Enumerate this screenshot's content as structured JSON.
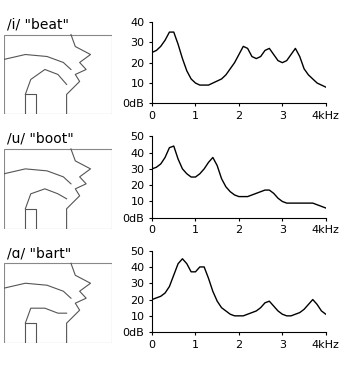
{
  "chart_data": [
    {
      "type": "line",
      "title": "/i/ \"beat\"",
      "color": "#000000",
      "x": [
        0.0,
        0.1,
        0.2,
        0.3,
        0.4,
        0.5,
        0.6,
        0.7,
        0.8,
        0.9,
        1.0,
        1.1,
        1.2,
        1.3,
        1.4,
        1.5,
        1.6,
        1.7,
        1.8,
        1.9,
        2.0,
        2.1,
        2.2,
        2.3,
        2.4,
        2.5,
        2.6,
        2.7,
        2.8,
        2.9,
        3.0,
        3.1,
        3.2,
        3.3,
        3.4,
        3.5,
        3.6,
        3.7,
        3.8,
        3.9,
        4.0
      ],
      "values": [
        25,
        26,
        28,
        31,
        35,
        35,
        29,
        22,
        16,
        12,
        10,
        9,
        9,
        9,
        10,
        11,
        12,
        14,
        17,
        20,
        24,
        28,
        27,
        23,
        22,
        23,
        26,
        27,
        24,
        21,
        20,
        21,
        24,
        27,
        23,
        17,
        14,
        12,
        10,
        9,
        8
      ],
      "xlim": [
        0,
        4
      ],
      "xticks": [
        0,
        1,
        2,
        3,
        {
          "value": 4,
          "label": "4kHz"
        }
      ],
      "ylim": [
        0,
        40
      ],
      "yticks": [
        {
          "value": 0,
          "label": "0dB"
        },
        10,
        20,
        30,
        40
      ]
    },
    {
      "type": "line",
      "title": "/u/ \"boot\"",
      "color": "#000000",
      "x": [
        0.0,
        0.1,
        0.2,
        0.3,
        0.4,
        0.5,
        0.6,
        0.7,
        0.8,
        0.9,
        1.0,
        1.1,
        1.2,
        1.3,
        1.4,
        1.5,
        1.6,
        1.7,
        1.8,
        1.9,
        2.0,
        2.1,
        2.2,
        2.3,
        2.4,
        2.5,
        2.6,
        2.7,
        2.8,
        2.9,
        3.0,
        3.1,
        3.2,
        3.3,
        3.4,
        3.5,
        3.6,
        3.7,
        3.8,
        3.9,
        4.0
      ],
      "values": [
        30,
        31,
        33,
        37,
        43,
        44,
        36,
        30,
        27,
        25,
        25,
        27,
        30,
        34,
        37,
        32,
        24,
        19,
        16,
        14,
        13,
        13,
        13,
        14,
        15,
        16,
        17,
        17,
        15,
        12,
        10,
        9,
        9,
        9,
        9,
        9,
        9,
        9,
        8,
        7,
        6
      ],
      "xlim": [
        0,
        4
      ],
      "xticks": [
        0,
        1,
        2,
        3,
        {
          "value": 4,
          "label": "4kHz"
        }
      ],
      "ylim": [
        0,
        50
      ],
      "yticks": [
        {
          "value": 0,
          "label": "0dB"
        },
        10,
        20,
        30,
        40,
        50
      ]
    },
    {
      "type": "line",
      "title": "/ɑ/ \"bart\"",
      "color": "#000000",
      "x": [
        0.0,
        0.1,
        0.2,
        0.3,
        0.4,
        0.5,
        0.6,
        0.7,
        0.8,
        0.9,
        1.0,
        1.1,
        1.2,
        1.3,
        1.4,
        1.5,
        1.6,
        1.7,
        1.8,
        1.9,
        2.0,
        2.1,
        2.2,
        2.3,
        2.4,
        2.5,
        2.6,
        2.7,
        2.8,
        2.9,
        3.0,
        3.1,
        3.2,
        3.3,
        3.4,
        3.5,
        3.6,
        3.7,
        3.8,
        3.9,
        4.0
      ],
      "values": [
        20,
        21,
        22,
        24,
        28,
        35,
        42,
        45,
        42,
        37,
        37,
        40,
        40,
        33,
        25,
        19,
        15,
        13,
        11,
        10,
        10,
        10,
        11,
        12,
        13,
        15,
        18,
        19,
        16,
        13,
        11,
        10,
        10,
        11,
        12,
        14,
        17,
        20,
        17,
        13,
        11
      ],
      "xlim": [
        0,
        4
      ],
      "xticks": [
        0,
        1,
        2,
        3,
        {
          "value": 4,
          "label": "4kHz"
        }
      ],
      "ylim": [
        0,
        50
      ],
      "yticks": [
        {
          "value": 0,
          "label": "0dB"
        },
        10,
        20,
        30,
        40,
        50
      ]
    }
  ]
}
